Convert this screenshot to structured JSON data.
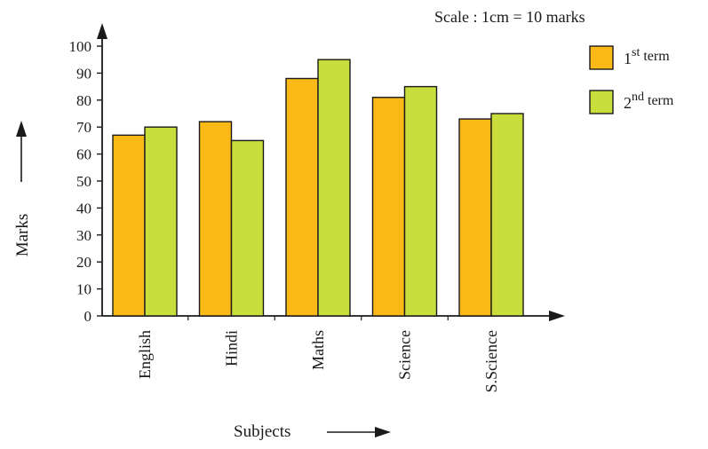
{
  "chart_data": {
    "type": "bar",
    "scale_note": "Scale : 1cm = 10 marks",
    "xlabel": "Subjects",
    "ylabel": "Marks",
    "categories": [
      "English",
      "Hindi",
      "Maths",
      "Science",
      "S.Science"
    ],
    "yticks": [
      0,
      10,
      20,
      30,
      40,
      50,
      60,
      70,
      80,
      90,
      100
    ],
    "ylim": [
      0,
      100
    ],
    "grid": false,
    "legend_position": "top-right",
    "series": [
      {
        "name": "1st term",
        "label_base": "1",
        "label_sup": "st",
        "label_rest": " term",
        "color": "#FBB917",
        "values": [
          67,
          72,
          88,
          81,
          73
        ]
      },
      {
        "name": "2nd term",
        "label_base": "2",
        "label_sup": "nd",
        "label_rest": " term",
        "color": "#C8DE3C",
        "values": [
          70,
          65,
          95,
          85,
          75
        ]
      }
    ]
  },
  "colors": {
    "axis": "#1a1a1a",
    "bar_stroke": "#1a1a1a"
  }
}
